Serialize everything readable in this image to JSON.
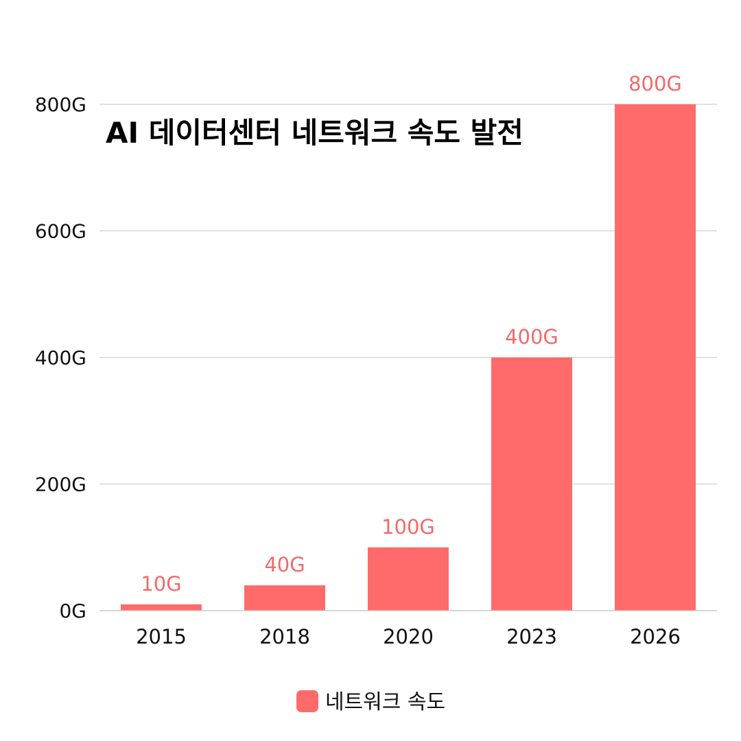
{
  "chart_data": {
    "type": "bar",
    "title": "AI 데이터센터 네트워크 속도 발전",
    "categories": [
      "2015",
      "2018",
      "2020",
      "2023",
      "2026"
    ],
    "series": [
      {
        "name": "네트워크 속도",
        "values": [
          10,
          40,
          100,
          400,
          800
        ],
        "data_labels": [
          "10G",
          "40G",
          "100G",
          "400G",
          "800G"
        ]
      }
    ],
    "ylim": [
      0,
      800
    ],
    "yticks": [
      0,
      200,
      400,
      600,
      800
    ],
    "ytick_labels": [
      "0G",
      "200G",
      "400G",
      "600G",
      "800G"
    ],
    "xlabel": "",
    "ylabel": "",
    "grid": true,
    "legend_position": "bottom-center",
    "colors": {
      "bar": "#ff6b6b",
      "data_label": "#f26a6a",
      "grid": "#d0d0d0",
      "axis": "#c8c8c8"
    }
  }
}
